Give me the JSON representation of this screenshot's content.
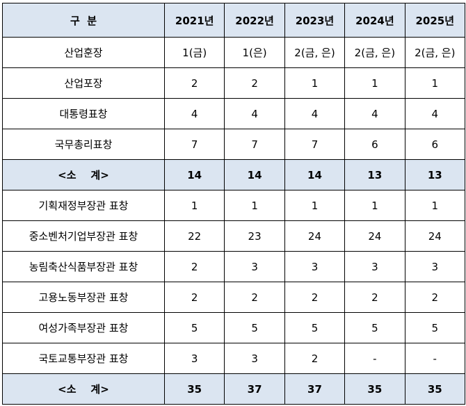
{
  "header": {
    "category": "구  분",
    "years": [
      "2021년",
      "2022년",
      "2023년",
      "2024년",
      "2025년"
    ]
  },
  "rows": [
    {
      "label": "산업훈장",
      "values": [
        "1(금)",
        "1(은)",
        "2(금, 은)",
        "2(금, 은)",
        "2(금, 은)"
      ],
      "subtotal": false
    },
    {
      "label": "산업포장",
      "values": [
        "2",
        "2",
        "1",
        "1",
        "1"
      ],
      "subtotal": false
    },
    {
      "label": "대통령표창",
      "values": [
        "4",
        "4",
        "4",
        "4",
        "4"
      ],
      "subtotal": false
    },
    {
      "label": "국무총리표창",
      "values": [
        "7",
        "7",
        "7",
        "6",
        "6"
      ],
      "subtotal": false
    },
    {
      "label": "<소    계>",
      "values": [
        "14",
        "14",
        "14",
        "13",
        "13"
      ],
      "subtotal": true
    },
    {
      "label": "기획재정부장관 표창",
      "values": [
        "1",
        "1",
        "1",
        "1",
        "1"
      ],
      "subtotal": false
    },
    {
      "label": "중소벤처기업부장관 표창",
      "values": [
        "22",
        "23",
        "24",
        "24",
        "24"
      ],
      "subtotal": false
    },
    {
      "label": "농림축산식품부장관 표창",
      "values": [
        "2",
        "3",
        "3",
        "3",
        "3"
      ],
      "subtotal": false
    },
    {
      "label": "고용노동부장관 표창",
      "values": [
        "2",
        "2",
        "2",
        "2",
        "2"
      ],
      "subtotal": false
    },
    {
      "label": "여성가족부장관 표창",
      "values": [
        "5",
        "5",
        "5",
        "5",
        "5"
      ],
      "subtotal": false
    },
    {
      "label": "국토교통부장관 표창",
      "values": [
        "3",
        "3",
        "2",
        "-",
        "-"
      ],
      "subtotal": false
    },
    {
      "label": "<소    계>",
      "values": [
        "35",
        "37",
        "37",
        "35",
        "35"
      ],
      "subtotal": true
    }
  ]
}
